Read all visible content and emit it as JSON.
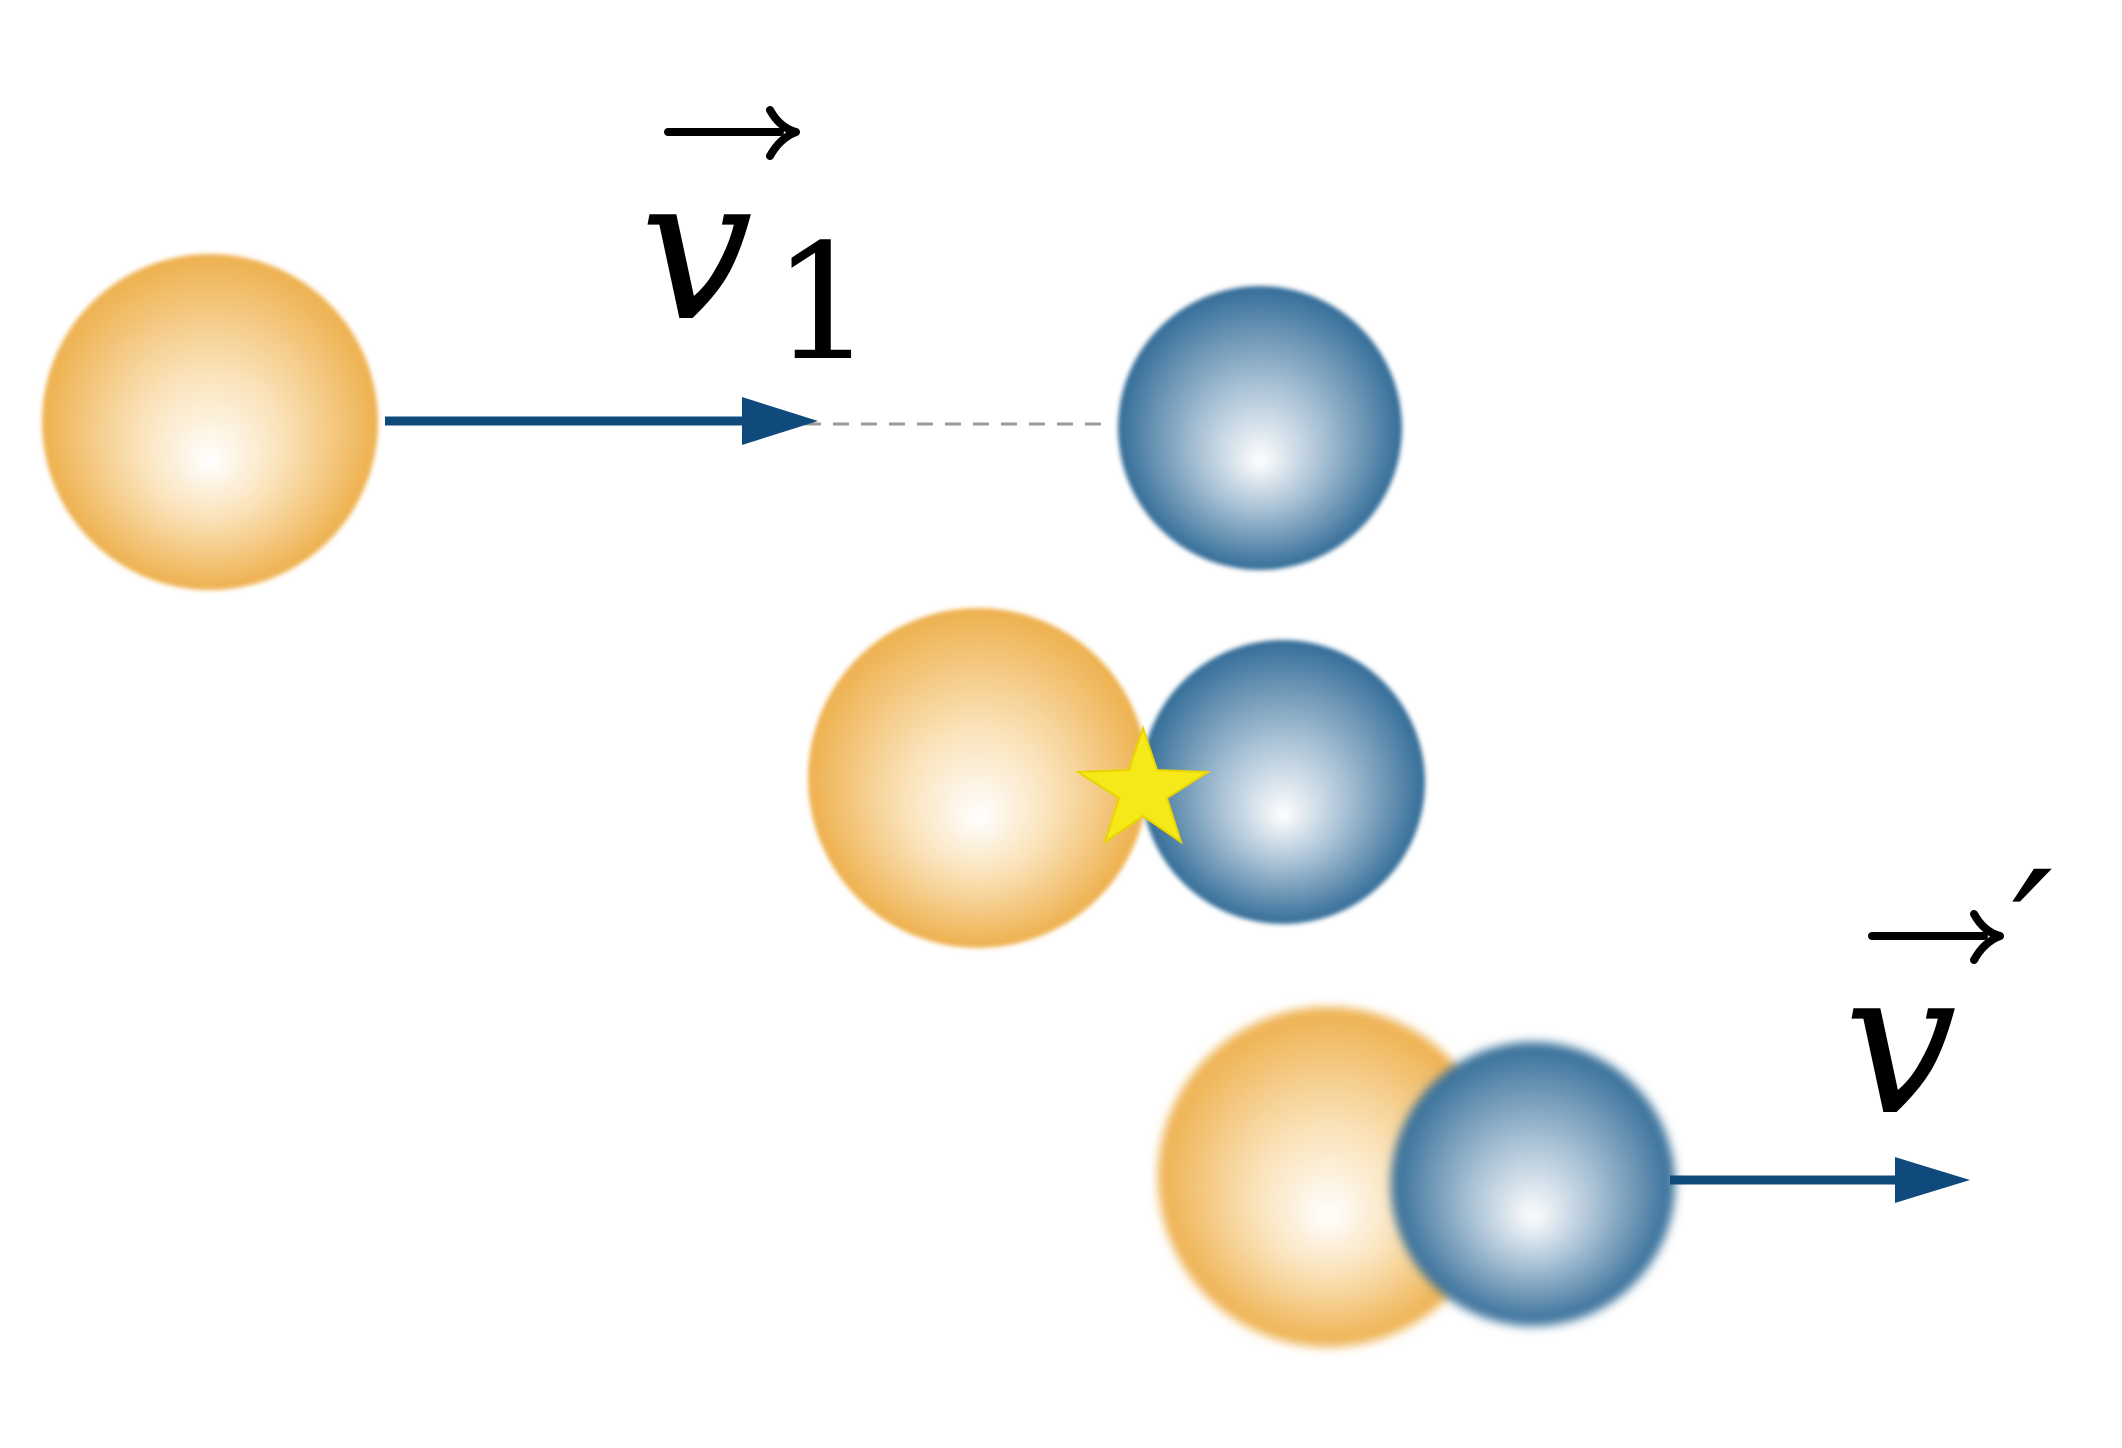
{
  "diagram": {
    "labels": {
      "initial_velocity": {
        "symbol": "v",
        "subscript": "1"
      },
      "final_velocity": {
        "symbol": "v",
        "prime": "′"
      }
    },
    "colors": {
      "sphere_orange": "#eeb04d",
      "sphere_blue": "#346d98",
      "arrow": "#104a7c",
      "dashed_line": "#9a9a9a",
      "collision_star": "#f6e91a"
    },
    "icons": {
      "collision_marker": "star-icon"
    }
  }
}
